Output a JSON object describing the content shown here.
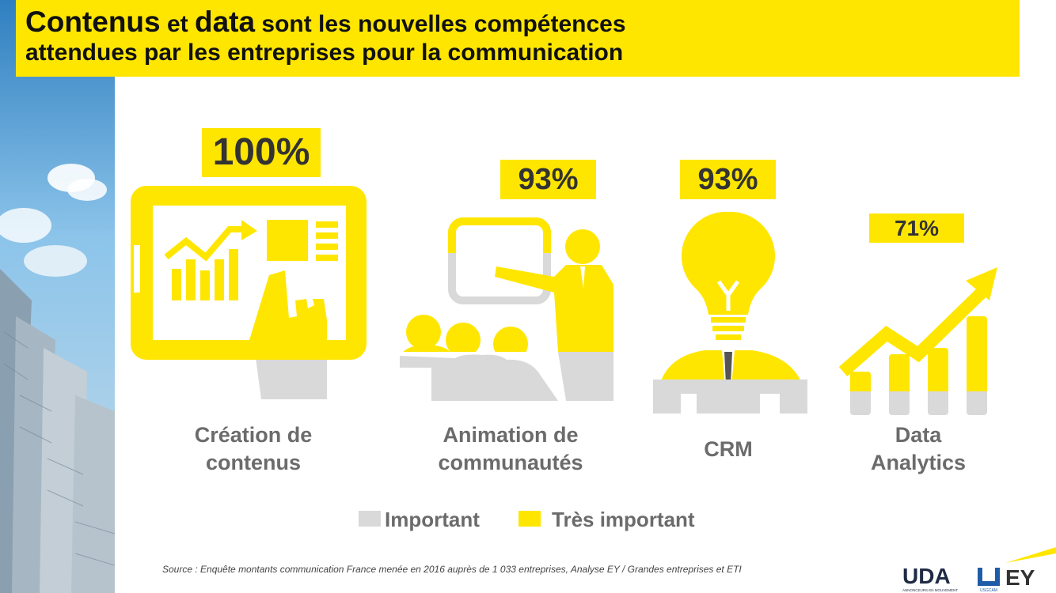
{
  "title": {
    "part1_bold_large": "Contenus",
    "part2": " et ",
    "part3_bold_large": "data",
    "part4": " sont les nouvelles compétences",
    "line2": "attendues par les entreprises pour la communication"
  },
  "colors": {
    "accent_yellow": "#FFE600",
    "important_gray": "#D9D9D9",
    "tres_important_yellow": "#FFE600",
    "label_gray": "#6B6B6B"
  },
  "categories": [
    {
      "label_line1": "Création de",
      "label_line2": "contenus",
      "percent": "100%",
      "icon": "tablet-chart-hand-icon",
      "tres_important_share": 0.78
    },
    {
      "label_line1": "Animation de",
      "label_line2": "communautés",
      "percent": "93%",
      "icon": "presenter-audience-icon",
      "tres_important_share": 0.62
    },
    {
      "label_line1": "CRM",
      "label_line2": "",
      "percent": "93%",
      "icon": "lightbulb-person-icon",
      "tres_important_share": 0.8
    },
    {
      "label_line1": "Data",
      "label_line2": "Analytics",
      "percent": "71%",
      "icon": "growth-bars-arrow-icon",
      "tres_important_share": 0.88
    }
  ],
  "legend": {
    "important": "Important",
    "tres_important": "Très important"
  },
  "source": "Source : Enquête montants communication France menée en 2016 auprès de 1 033 entreprises, Analyse EY / Grandes entreprises et ETI",
  "logos": {
    "uda": "UDA",
    "uda_sub": "ANNONCEURS EN MOUVEMENT",
    "ey": "EY",
    "usgcam": "USGCAM"
  }
}
